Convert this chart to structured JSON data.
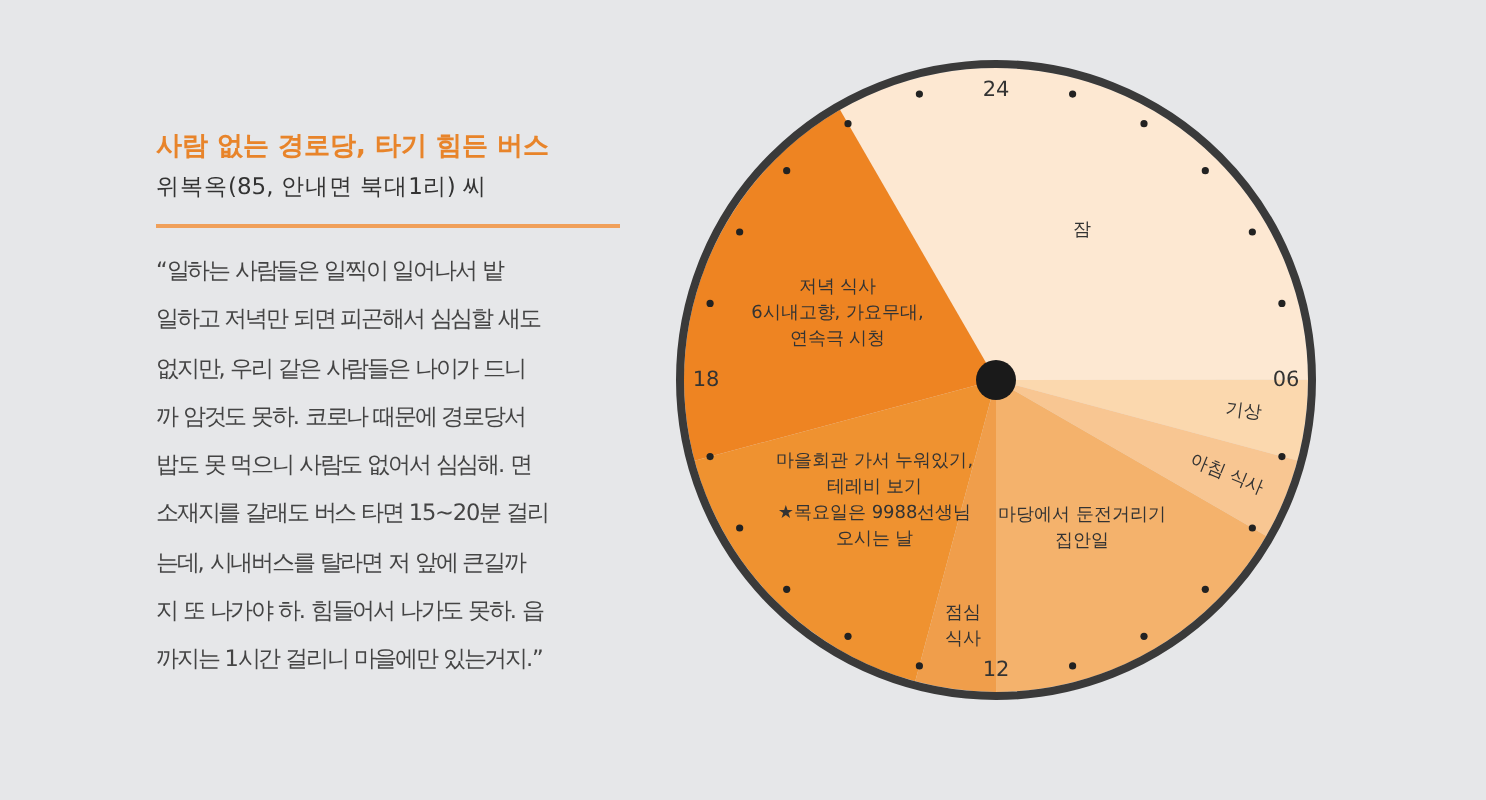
{
  "chart_data": {
    "type": "pie",
    "title": "사람 없는 경로당, 타기 힘든 버스",
    "subtitle": "위복옥(85, 안내면 북대1리) 씨",
    "categories": [
      "잠",
      "기상",
      "아침 식사",
      "마당에서 둔전거리기\n집안일",
      "점심\n식사",
      "마을회관 가서 누워있기,\n테레비 보기\n★목요일은 9988선생님\n오시는 날",
      "저녁 식사\n6시내고향, 가요무대,\n연속극 시청"
    ],
    "values": [
      33.32,
      4.17,
      4.17,
      16.67,
      4.17,
      16.67,
      20.83
    ],
    "colors": [
      "#fde8d2",
      "#fbd8ae",
      "#f8c692",
      "#f4b26c",
      "#f09e4b",
      "#ef9230",
      "#ee8422"
    ],
    "legend": false,
    "annotations": [
      "24",
      "06",
      "12",
      "18",
      "“일하는 사람들은 일찍이 일어나서 밭\n일하고 저녁만 되면 피곤해서 심심할 새도\n없지만, 우리 같은 사람들은 나이가 드니\n까 암것도 못하. 코로나 때문에 경로당서\n밥도 못 먹으니 사람도 없어서 심심해. 면\n소재지를 갈래도 버스 타면 15~20분 걸리\n는데, 시내버스를 탈라면 저 앞에 큰길까\n지 또 나가야 하. 힘들어서 나가도 못하. 읍\n까지는 1시간 걸리니 마을에만 있는거지.”"
    ]
  }
}
